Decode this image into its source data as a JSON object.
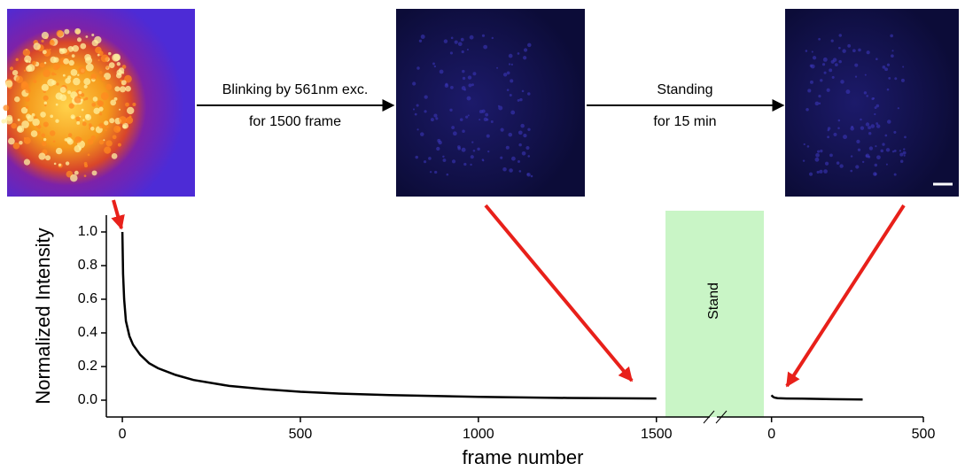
{
  "arrows": [
    {
      "lines": [
        "Blinking by 561nm exc.",
        "for 1500 frame"
      ]
    },
    {
      "lines": [
        "Standing",
        "for 15 min"
      ]
    }
  ],
  "stand_label": "Stand",
  "chart_data": [
    {
      "type": "line",
      "ylabel": "Normalized Intensity",
      "xlabel": "frame number",
      "series": [
        {
          "color": "#000000",
          "x": [
            0,
            2,
            5,
            10,
            20,
            30,
            50,
            75,
            100,
            150,
            200,
            300,
            400,
            500,
            600,
            750,
            1000,
            1250,
            1500
          ],
          "values": [
            1.0,
            0.75,
            0.6,
            0.47,
            0.38,
            0.33,
            0.27,
            0.22,
            0.19,
            0.15,
            0.12,
            0.085,
            0.065,
            0.05,
            0.04,
            0.03,
            0.02,
            0.013,
            0.01
          ]
        }
      ],
      "xlim": [
        -45,
        1650
      ],
      "ylim": [
        -0.1,
        1.1
      ],
      "xticks": [
        0,
        500,
        1000,
        1500
      ],
      "yticks": [
        {
          "value": 0,
          "label": "0.0"
        },
        {
          "value": 0.2,
          "label": "0.2"
        },
        {
          "value": 0.4,
          "label": "0.4"
        },
        {
          "value": 0.6,
          "label": "0.6"
        },
        {
          "value": 0.8,
          "label": "0.8"
        },
        {
          "value": 1,
          "label": "1.0"
        }
      ]
    },
    {
      "type": "line",
      "series": [
        {
          "color": "#000000",
          "x": [
            0,
            2,
            5,
            10,
            20,
            50,
            100,
            200,
            300
          ],
          "values": [
            0.03,
            0.025,
            0.02,
            0.015,
            0.012,
            0.01,
            0.009,
            0.006,
            0.004
          ]
        }
      ],
      "xlim": [
        -180,
        500
      ],
      "ylim": [
        -0.1,
        1.1
      ],
      "xticks": [
        0,
        500
      ]
    }
  ]
}
